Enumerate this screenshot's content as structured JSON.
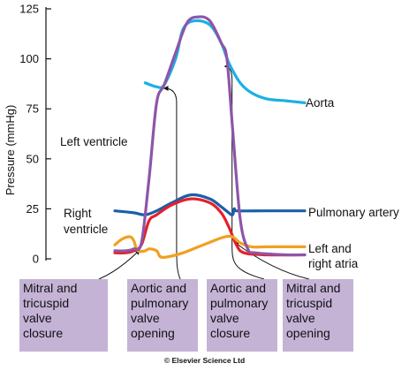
{
  "chart_data": {
    "type": "line",
    "ylabel": "Pressure (mmHg)",
    "ylim": [
      0,
      125
    ],
    "yticks": [
      0,
      25,
      50,
      75,
      100,
      125
    ],
    "grid": false,
    "series": [
      {
        "name": "Aorta",
        "color": "#1ab0e5",
        "points": [
          [
            0.08,
            88
          ],
          [
            0.11,
            86
          ],
          [
            0.13,
            87
          ],
          [
            0.16,
            100
          ],
          [
            0.18,
            115
          ],
          [
            0.21,
            119
          ],
          [
            0.25,
            117
          ],
          [
            0.28,
            108
          ],
          [
            0.3,
            98
          ],
          [
            0.33,
            88
          ],
          [
            0.36,
            83
          ],
          [
            0.4,
            80
          ],
          [
            0.45,
            79
          ],
          [
            0.5,
            78
          ]
        ]
      },
      {
        "name": "Left ventricle",
        "color": "#8e55a8",
        "points": [
          [
            0,
            4
          ],
          [
            0.03,
            4
          ],
          [
            0.05,
            5
          ],
          [
            0.07,
            8
          ],
          [
            0.09,
            40
          ],
          [
            0.11,
            78
          ],
          [
            0.13,
            87
          ],
          [
            0.16,
            103
          ],
          [
            0.19,
            118
          ],
          [
            0.22,
            121
          ],
          [
            0.25,
            119
          ],
          [
            0.28,
            108
          ],
          [
            0.295,
            100
          ],
          [
            0.31,
            65
          ],
          [
            0.33,
            20
          ],
          [
            0.35,
            5
          ],
          [
            0.37,
            3
          ],
          [
            0.45,
            2
          ],
          [
            0.5,
            2
          ]
        ]
      },
      {
        "name": "Pulmonary artery",
        "color": "#1a5fa8",
        "points": [
          [
            0,
            24
          ],
          [
            0.05,
            23
          ],
          [
            0.08,
            22
          ],
          [
            0.11,
            24
          ],
          [
            0.15,
            28
          ],
          [
            0.2,
            32
          ],
          [
            0.25,
            30
          ],
          [
            0.28,
            26
          ],
          [
            0.3,
            23
          ],
          [
            0.31,
            22
          ],
          [
            0.315,
            25
          ],
          [
            0.32,
            24
          ],
          [
            0.4,
            24
          ],
          [
            0.5,
            24
          ]
        ]
      },
      {
        "name": "Right ventricle",
        "color": "#e5202a",
        "points": [
          [
            0,
            3
          ],
          [
            0.03,
            3
          ],
          [
            0.05,
            4
          ],
          [
            0.07,
            7
          ],
          [
            0.09,
            19
          ],
          [
            0.11,
            22
          ],
          [
            0.15,
            27
          ],
          [
            0.2,
            30
          ],
          [
            0.25,
            28
          ],
          [
            0.28,
            23
          ],
          [
            0.3,
            16
          ],
          [
            0.32,
            7
          ],
          [
            0.34,
            3
          ],
          [
            0.4,
            2
          ],
          [
            0.5,
            2
          ]
        ]
      },
      {
        "name": "Left and right atria",
        "color": "#f0a020",
        "points": [
          [
            0,
            7
          ],
          [
            0.02,
            10
          ],
          [
            0.04,
            11
          ],
          [
            0.05,
            9
          ],
          [
            0.06,
            4
          ],
          [
            0.08,
            4
          ],
          [
            0.09,
            5
          ],
          [
            0.11,
            4
          ],
          [
            0.12,
            1
          ],
          [
            0.14,
            1
          ],
          [
            0.18,
            3
          ],
          [
            0.22,
            6
          ],
          [
            0.26,
            9
          ],
          [
            0.29,
            11
          ],
          [
            0.31,
            11
          ],
          [
            0.33,
            8
          ],
          [
            0.36,
            6
          ],
          [
            0.4,
            6
          ],
          [
            0.5,
            6
          ]
        ]
      }
    ],
    "series_labels": [
      "Aorta",
      "Left ventricle",
      "Pulmonary artery",
      "Right ventricle",
      "Left and right atria"
    ],
    "events": [
      {
        "label": "Mitral and tricuspid valve closure",
        "lines": [
          "Mitral and",
          "tricuspid",
          "valve",
          "closure"
        ],
        "t": 0.065,
        "p": 7
      },
      {
        "label": "Aortic and pulmonary valve opening",
        "lines": [
          "Aortic and",
          "pulmonary",
          "valve",
          "opening"
        ],
        "t": 0.13,
        "p": 87
      },
      {
        "label": "Aortic and pulmonary valve closure",
        "lines": [
          "Aortic and",
          "pulmonary",
          "valve",
          "closure"
        ],
        "t": 0.29,
        "p": 98
      },
      {
        "label": "Mitral and tricuspid valve opening",
        "lines": [
          "Mitral and",
          "tricuspid",
          "valve",
          "opening"
        ],
        "t": 0.315,
        "p": 11
      }
    ]
  },
  "labels": {
    "aorta": "Aorta",
    "left_ventricle": "Left ventricle",
    "pulmonary_artery": "Pulmonary artery",
    "right_ventricle_1": "Right",
    "right_ventricle_2": "ventricle",
    "atria_1": "Left and",
    "atria_2": "right atria"
  },
  "copyright": "© Elsevier Science Ltd"
}
